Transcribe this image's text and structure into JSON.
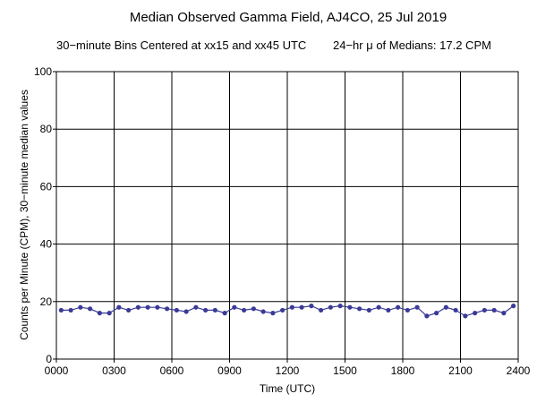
{
  "chart_data": {
    "type": "line",
    "title": "Median Observed Gamma Field, AJ4CO, 25 Jul 2019",
    "subtitle_left": "30−minute Bins Centered at xx15 and xx45 UTC",
    "subtitle_right": "24−hr μ of Medians: 17.2 CPM",
    "xlabel": "Time (UTC)",
    "ylabel": "Counts per Minute (CPM), 30−minute median values",
    "xlim": [
      0,
      24
    ],
    "ylim": [
      0,
      100
    ],
    "x_ticks": [
      {
        "value": 0,
        "label": "0000"
      },
      {
        "value": 3,
        "label": "0300"
      },
      {
        "value": 6,
        "label": "0600"
      },
      {
        "value": 9,
        "label": "0900"
      },
      {
        "value": 12,
        "label": "1200"
      },
      {
        "value": 15,
        "label": "1500"
      },
      {
        "value": 18,
        "label": "1800"
      },
      {
        "value": 21,
        "label": "2100"
      },
      {
        "value": 24,
        "label": "2400"
      }
    ],
    "y_ticks": [
      {
        "value": 0,
        "label": "0"
      },
      {
        "value": 20,
        "label": "20"
      },
      {
        "value": 40,
        "label": "40"
      },
      {
        "value": 60,
        "label": "60"
      },
      {
        "value": 80,
        "label": "80"
      },
      {
        "value": 100,
        "label": "100"
      }
    ],
    "grid": true,
    "series_color": "#3a3a96",
    "series": [
      {
        "x": [
          0.25,
          0.75,
          1.25,
          1.75,
          2.25,
          2.75,
          3.25,
          3.75,
          4.25,
          4.75,
          5.25,
          5.75,
          6.25,
          6.75,
          7.25,
          7.75,
          8.25,
          8.75,
          9.25,
          9.75,
          10.25,
          10.75,
          11.25,
          11.75,
          12.25,
          12.75,
          13.25,
          13.75,
          14.25,
          14.75,
          15.25,
          15.75,
          16.25,
          16.75,
          17.25,
          17.75,
          18.25,
          18.75,
          19.25,
          19.75,
          20.25,
          20.75,
          21.25,
          21.75,
          22.25,
          22.75,
          23.25,
          23.75
        ],
        "values": [
          17,
          17,
          18,
          17.5,
          16,
          16,
          18,
          17,
          18,
          18,
          18,
          17.5,
          17,
          16.5,
          18,
          17,
          17,
          16,
          18,
          17,
          17.5,
          16.5,
          16,
          17,
          18,
          18,
          18.5,
          17,
          18,
          18.5,
          18,
          17.5,
          17,
          18,
          17,
          18,
          17,
          18,
          15,
          16,
          18,
          17,
          15,
          16,
          17,
          17,
          16,
          18.5
        ]
      }
    ]
  }
}
